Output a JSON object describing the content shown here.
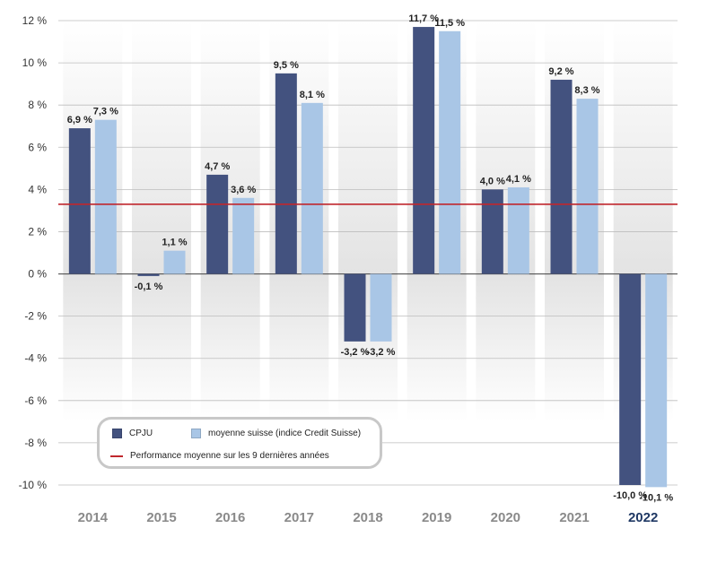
{
  "chart_data": {
    "type": "bar",
    "categories": [
      "2014",
      "2015",
      "2016",
      "2017",
      "2018",
      "2019",
      "2020",
      "2021",
      "2022"
    ],
    "highlight_category": "2022",
    "series": [
      {
        "name": "CPJU",
        "color": "#43527f",
        "values": [
          6.9,
          -0.1,
          4.7,
          9.5,
          -3.2,
          11.7,
          4.0,
          9.2,
          -10.0
        ],
        "labels": [
          "6,9 %",
          "-0,1 %",
          "4,7 %",
          "9,5 %",
          "-3,2 %",
          "11,7 %",
          "4,0 %",
          "9,2 %",
          "-10,0 %"
        ]
      },
      {
        "name": "moyenne suisse (indice Credit Suisse)",
        "color": "#a9c6e6",
        "values": [
          7.3,
          1.1,
          3.6,
          8.1,
          -3.2,
          11.5,
          4.1,
          8.3,
          -10.1
        ],
        "labels": [
          "7,3 %",
          "1,1 %",
          "3,6 %",
          "8,1 %",
          "-3,2 %",
          "11,5 %",
          "4,1 %",
          "8,3 %",
          "-10,1 %"
        ]
      }
    ],
    "reference_line": {
      "name": "Performance moyenne sur les 9 dernières années",
      "value": 3.3,
      "color": "#c0272d"
    },
    "ylim": [
      -10,
      12
    ],
    "yticks": [
      12,
      10,
      8,
      6,
      4,
      2,
      0,
      -2,
      -4,
      -6,
      -8,
      -10
    ],
    "ytick_labels": [
      "12 %",
      "10 %",
      "8 %",
      "6 %",
      "4 %",
      "2 %",
      "0 %",
      "-2 %",
      "-4 %",
      "-6 %",
      "-8 %",
      "-10 %"
    ],
    "grid": true,
    "legend_position": "bottom-left",
    "title": "",
    "xlabel": "",
    "ylabel": ""
  },
  "legend": {
    "series1_label": "CPJU",
    "series2_label": "moyenne suisse (indice Credit Suisse)",
    "line_label": "Performance moyenne sur les 9 dernières années"
  }
}
